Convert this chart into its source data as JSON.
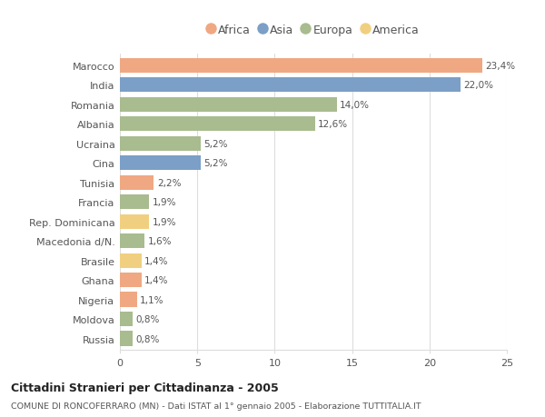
{
  "categories": [
    "Russia",
    "Moldova",
    "Nigeria",
    "Ghana",
    "Brasile",
    "Macedonia d/N.",
    "Rep. Dominicana",
    "Francia",
    "Tunisia",
    "Cina",
    "Ucraina",
    "Albania",
    "Romania",
    "India",
    "Marocco"
  ],
  "values": [
    0.8,
    0.8,
    1.1,
    1.4,
    1.4,
    1.6,
    1.9,
    1.9,
    2.2,
    5.2,
    5.2,
    12.6,
    14.0,
    22.0,
    23.4
  ],
  "labels": [
    "0,8%",
    "0,8%",
    "1,1%",
    "1,4%",
    "1,4%",
    "1,6%",
    "1,9%",
    "1,9%",
    "2,2%",
    "5,2%",
    "5,2%",
    "12,6%",
    "14,0%",
    "22,0%",
    "23,4%"
  ],
  "continents": [
    "Europa",
    "Europa",
    "Africa",
    "Africa",
    "America",
    "Europa",
    "America",
    "Europa",
    "Africa",
    "Asia",
    "Europa",
    "Europa",
    "Europa",
    "Asia",
    "Africa"
  ],
  "continent_colors": {
    "Africa": "#F0A882",
    "Asia": "#7B9FC7",
    "Europa": "#A8BC8F",
    "America": "#F0D080"
  },
  "legend_order": [
    "Africa",
    "Asia",
    "Europa",
    "America"
  ],
  "title": "Cittadini Stranieri per Cittadinanza - 2005",
  "subtitle": "COMUNE DI RONCOFERRARO (MN) - Dati ISTAT al 1° gennaio 2005 - Elaborazione TUTTITALIA.IT",
  "xlim": [
    0,
    25
  ],
  "xticks": [
    0,
    5,
    10,
    15,
    20,
    25
  ],
  "background_color": "#ffffff",
  "bar_height": 0.75,
  "grid_color": "#dddddd",
  "text_color": "#555555"
}
